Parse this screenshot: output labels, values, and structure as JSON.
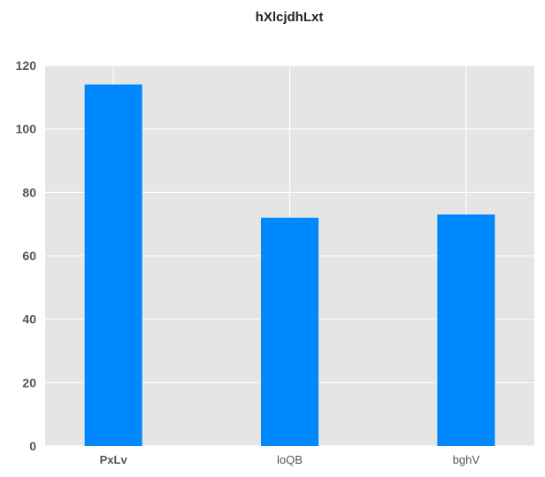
{
  "chart_data": {
    "type": "bar",
    "title": "hXlcjdhLxt",
    "xlabel": "",
    "ylabel": "",
    "categories": [
      "PxLv",
      "loQB",
      "bghV"
    ],
    "series": [
      {
        "values": [
          114,
          72,
          73
        ]
      }
    ],
    "ylim": [
      0,
      120
    ],
    "yticks": [
      0,
      20,
      40,
      60,
      80,
      100,
      120
    ],
    "grid": true,
    "bar_color": "#0088ff",
    "background_color": "#e5e5e5",
    "grid_color": "#ffffff"
  }
}
